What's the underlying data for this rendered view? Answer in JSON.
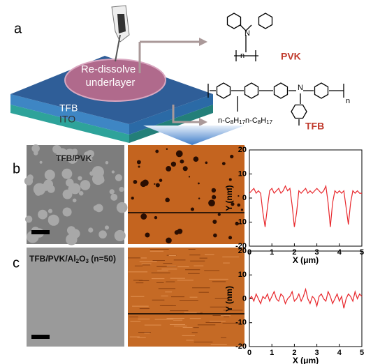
{
  "figure": {
    "panel_a": "a",
    "panel_b": "b",
    "panel_c": "c",
    "redissolve": "Re-dissolve",
    "underlayer": "underlayer",
    "layer_tfb": "TFB",
    "layer_ito": "ITO",
    "pvk_name": "PVK",
    "tfb_name": "TFB",
    "pvk_n": "n",
    "tfb_n": "n",
    "tfb_sub_n": "N",
    "alkyl": [
      "n-C",
      "8",
      "H",
      "17",
      "n-C",
      "8",
      "H",
      "17"
    ],
    "b_label": "TFB/PVK",
    "c_label": [
      "TFB/PVK/Al",
      "2",
      "O",
      "3",
      " (n=50)"
    ]
  },
  "chart_data": [
    {
      "type": "line",
      "x_label": "X (μm)",
      "y_label": "Y (nm)",
      "x": [
        0,
        0.1,
        0.2,
        0.3,
        0.4,
        0.5,
        0.6,
        0.7,
        0.8,
        0.9,
        1,
        1.1,
        1.2,
        1.3,
        1.4,
        1.5,
        1.6,
        1.7,
        1.8,
        1.9,
        2,
        2.1,
        2.2,
        2.3,
        2.4,
        2.5,
        2.6,
        2.7,
        2.8,
        2.9,
        3,
        3.1,
        3.2,
        3.3,
        3.4,
        3.5,
        3.6,
        3.7,
        3.8,
        3.9,
        4,
        4.1,
        4.2,
        4.3,
        4.4,
        4.5,
        4.6,
        4.7,
        4.8,
        4.9,
        5
      ],
      "series": [
        {
          "color": "#e8262b",
          "values": [
            2,
            3,
            4,
            2,
            3,
            2,
            -6,
            -12,
            -4,
            3,
            4,
            2,
            3,
            4,
            2,
            3,
            5,
            3,
            4,
            -3,
            -12,
            -6,
            3,
            2,
            3,
            4,
            2,
            3,
            2,
            3,
            4,
            3,
            2,
            3,
            5,
            -2,
            -12,
            -2,
            3,
            2,
            3,
            2,
            3,
            -4,
            -11,
            -2,
            3,
            2,
            3,
            2,
            2
          ]
        }
      ],
      "xlim": [
        0,
        5
      ],
      "ylim": [
        -20,
        20
      ],
      "xticks": [
        0,
        1,
        2,
        3,
        4,
        5
      ],
      "yticks": [
        -20,
        -10,
        0,
        10,
        20
      ]
    },
    {
      "type": "line",
      "x_label": "X (μm)",
      "y_label": "Y (nm)",
      "x": [
        0,
        0.1,
        0.2,
        0.3,
        0.4,
        0.5,
        0.6,
        0.7,
        0.8,
        0.9,
        1,
        1.1,
        1.2,
        1.3,
        1.4,
        1.5,
        1.6,
        1.7,
        1.8,
        1.9,
        2,
        2.1,
        2.2,
        2.3,
        2.4,
        2.5,
        2.6,
        2.7,
        2.8,
        2.9,
        3,
        3.1,
        3.2,
        3.3,
        3.4,
        3.5,
        3.6,
        3.7,
        3.8,
        3.9,
        4,
        4.1,
        4.2,
        4.3,
        4.4,
        4.5,
        4.6,
        4.7,
        4.8,
        4.9,
        5
      ],
      "series": [
        {
          "color": "#e8262b",
          "values": [
            0,
            1,
            -1,
            2,
            0,
            -2,
            1,
            0,
            2,
            -1,
            1,
            3,
            0,
            -1,
            2,
            1,
            -2,
            0,
            1,
            3,
            -1,
            0,
            2,
            -1,
            1,
            4,
            0,
            -2,
            1,
            0,
            -3,
            1,
            2,
            0,
            -1,
            3,
            1,
            -2,
            0,
            2,
            -1,
            1,
            -4,
            0,
            2,
            1,
            -1,
            3,
            0,
            2,
            1
          ]
        }
      ],
      "xlim": [
        0,
        5
      ],
      "ylim": [
        -20,
        20
      ],
      "xticks": [
        0,
        1,
        2,
        3,
        4,
        5
      ],
      "yticks": [
        -20,
        -10,
        0,
        10,
        20
      ]
    }
  ]
}
